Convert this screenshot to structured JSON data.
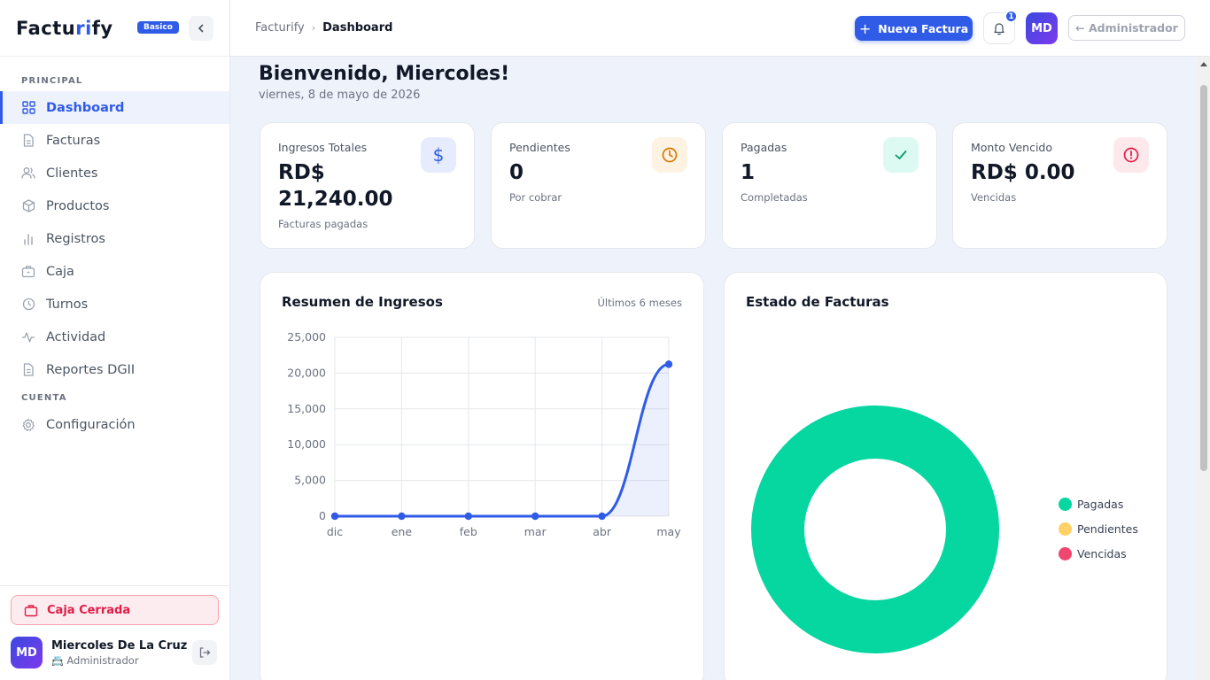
{
  "sidebar": {
    "logo_prefix": "Factu",
    "logo_highlight": "ri",
    "logo_suffix": "fy",
    "plan_badge": "Basico",
    "section_principal": "PRINCIPAL",
    "section_cuenta": "CUENTA",
    "nav": [
      {
        "label": "Dashboard",
        "icon": "grid-icon",
        "active": true
      },
      {
        "label": "Facturas",
        "icon": "document-icon"
      },
      {
        "label": "Clientes",
        "icon": "users-icon"
      },
      {
        "label": "Productos",
        "icon": "box-icon"
      },
      {
        "label": "Registros",
        "icon": "bar-chart-icon"
      },
      {
        "label": "Caja",
        "icon": "briefcase-icon"
      },
      {
        "label": "Turnos",
        "icon": "clock-icon"
      },
      {
        "label": "Actividad",
        "icon": "activity-icon"
      },
      {
        "label": "Reportes DGII",
        "icon": "report-icon"
      }
    ],
    "config_label": "Configuración",
    "caja_button": "Caja Cerrada",
    "user_initials": "MD",
    "user_name": "Miercoles De La Cruz",
    "user_role": "Administrador"
  },
  "topbar": {
    "breadcrumb_root": "Facturify",
    "breadcrumb_current": "Dashboard",
    "new_invoice": "Nueva Factura",
    "notification_count": "1",
    "avatar_initials": "MD",
    "admin_button": "← Administrador"
  },
  "main": {
    "greeting": "Bienvenido, Miercoles!",
    "date": "viernes, 8 de mayo de 2026",
    "stats": [
      {
        "label": "Ingresos Totales",
        "value": "RD$ 21,240.00",
        "sub": "Facturas pagadas",
        "icon": "dollar-icon"
      },
      {
        "label": "Pendientes",
        "value": "0",
        "sub": "Por cobrar",
        "icon": "clock-icon"
      },
      {
        "label": "Pagadas",
        "value": "1",
        "sub": "Completadas",
        "icon": "check-icon"
      },
      {
        "label": "Monto Vencido",
        "value": "RD$ 0.00",
        "sub": "Vencidas",
        "icon": "alert-icon"
      }
    ],
    "revenue_title": "Resumen de Ingresos",
    "revenue_period": "Últimos 6 meses",
    "status_title": "Estado de Facturas"
  },
  "colors": {
    "accent": "#2f5be7",
    "paid": "#06d6a0",
    "pending": "#ffd166",
    "overdue": "#ef476f"
  },
  "chart_data": [
    {
      "type": "line",
      "categories": [
        "dic",
        "ene",
        "feb",
        "mar",
        "abr",
        "may"
      ],
      "values": [
        0,
        0,
        0,
        0,
        0,
        21240
      ],
      "ylim": [
        0,
        25000
      ],
      "yticks": [
        "0",
        "5,000",
        "10,000",
        "15,000",
        "20,000",
        "25,000"
      ],
      "grid": true,
      "fill": true
    },
    {
      "type": "pie",
      "donut": true,
      "labels": [
        "Pagadas",
        "Pendientes",
        "Vencidas"
      ],
      "values": [
        1,
        0,
        0
      ],
      "colors": [
        "#06d6a0",
        "#ffd166",
        "#ef476f"
      ],
      "legend": "right"
    }
  ]
}
